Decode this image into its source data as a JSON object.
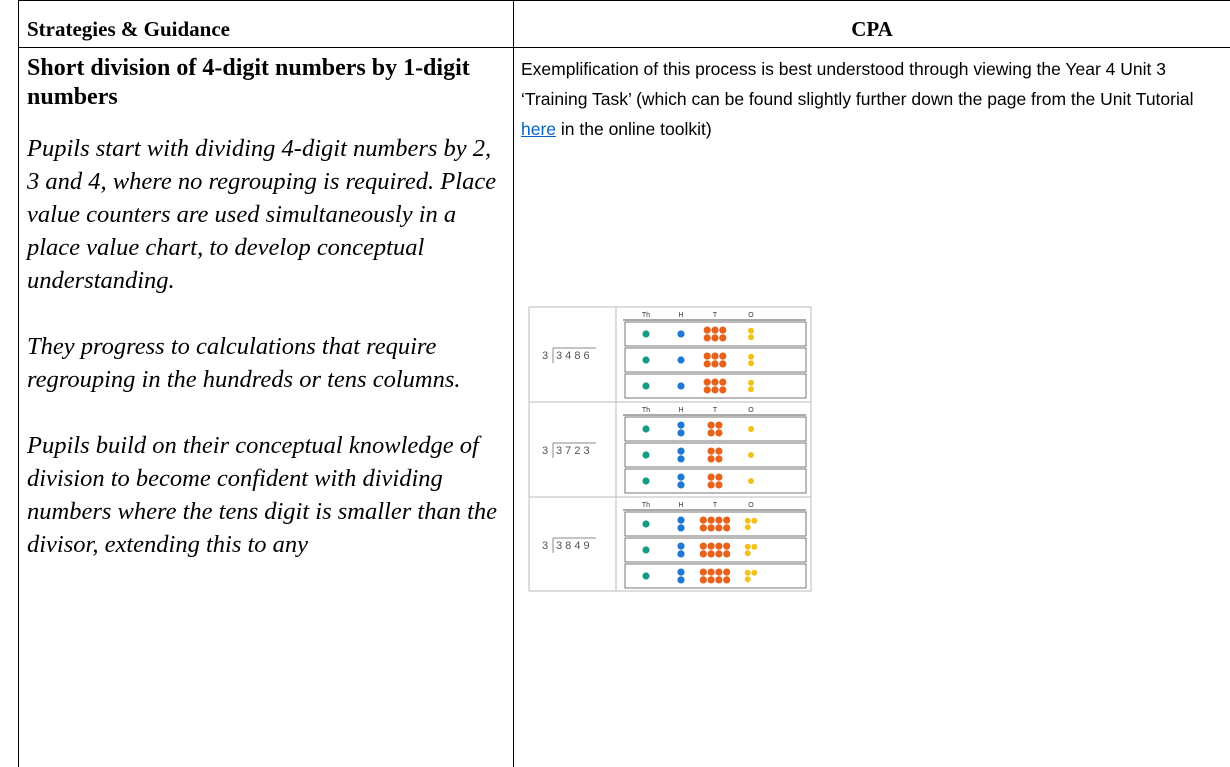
{
  "header": {
    "left": "Strategies & Guidance",
    "right": "CPA"
  },
  "left": {
    "heading": "Short division of 4-digit numbers by 1-digit numbers",
    "paragraphs": [
      "Pupils start with dividing 4-digit numbers by 2, 3 and 4, where no regrouping is required. Place value counters are used simultaneously in a place value chart, to develop conceptual understanding.",
      "They progress to calculations that require regrouping in the hundreds or tens columns.",
      "Pupils build on their conceptual knowledge of division to become confident with dividing numbers where the tens digit is smaller than the divisor, extending this to any"
    ]
  },
  "right": {
    "text_before": "Exemplification of this process is best understood through viewing the Year 4 Unit 3 ‘Training Task’ (which can be found slightly further down the page from the Unit Tutorial ",
    "link": "here",
    "text_after": " in the online toolkit)"
  },
  "figure": {
    "column_headers": [
      "Th",
      "H",
      "T",
      "O"
    ],
    "blocks": [
      {
        "divisor": "3",
        "dividend": "3 4 8 6",
        "groups": [
          [
            1,
            1,
            6,
            2
          ],
          [
            1,
            1,
            6,
            2
          ],
          [
            1,
            1,
            6,
            2
          ]
        ]
      },
      {
        "divisor": "3",
        "dividend": "3 7 2 3",
        "groups": [
          [
            1,
            2,
            4,
            1
          ],
          [
            1,
            2,
            4,
            1
          ],
          [
            1,
            2,
            4,
            1
          ]
        ]
      },
      {
        "divisor": "3",
        "dividend": "3 8 4 9",
        "groups": [
          [
            1,
            2,
            8,
            3
          ],
          [
            1,
            2,
            8,
            3
          ],
          [
            1,
            2,
            8,
            3
          ]
        ]
      }
    ]
  }
}
